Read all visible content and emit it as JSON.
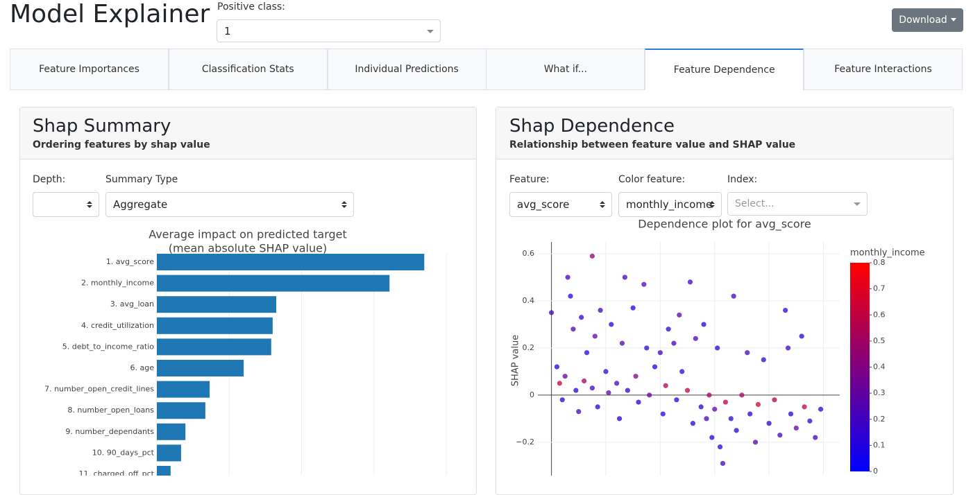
{
  "header": {
    "title": "Model Explainer",
    "positive_class_label": "Positive class:",
    "positive_class_value": "1",
    "download": "Download"
  },
  "tabs": [
    "Feature Importances",
    "Classification Stats",
    "Individual Predictions",
    "What if...",
    "Feature Dependence",
    "Feature Interactions"
  ],
  "active_tab": 4,
  "shap_summary": {
    "title": "Shap Summary",
    "subtitle": "Ordering features by shap value",
    "depth_label": "Depth:",
    "summary_type_label": "Summary Type",
    "summary_type_value": "Aggregate",
    "chart_data": {
      "type": "bar",
      "orientation": "horizontal",
      "title": "Average impact on predicted target",
      "subtitle": "(mean absolute SHAP value)",
      "categories": [
        "1. avg_score",
        "2. monthly_income",
        "3. avg_loan",
        "4. credit_utilization",
        "5. debt_to_income_ratio",
        "6. age",
        "7. number_open_credit_lines",
        "8. number_open_loans",
        "9. number_dependants",
        "10. 90_days_pct",
        "11. charged_off_pct"
      ],
      "values": [
        0.0739,
        0.0643,
        0.033,
        0.032,
        0.0316,
        0.024,
        0.0146,
        0.0134,
        0.0079,
        0.0067,
        0.0038
      ],
      "color": "#1f77b4",
      "xlim": [
        0,
        0.084
      ],
      "xticks": [
        0,
        0.02,
        0.04,
        0.06,
        0.08
      ],
      "grid": true
    }
  },
  "shap_dependence": {
    "title": "Shap Dependence",
    "subtitle": "Relationship between feature value and SHAP value",
    "feature_label": "Feature:",
    "feature_value": "avg_score",
    "color_feature_label": "Color feature:",
    "color_feature_value": "monthly_income",
    "index_label": "Index:",
    "index_placeholder": "Select...",
    "chart_data": {
      "type": "scatter",
      "title": "Dependence plot for avg_score",
      "ylabel": "SHAP value",
      "x": [
        0,
        2,
        3,
        4,
        5,
        6,
        7,
        8,
        9,
        10,
        11,
        12,
        13,
        15,
        15,
        16,
        17,
        18,
        20,
        21,
        22,
        24,
        25,
        26,
        27,
        28,
        30,
        31,
        32,
        34,
        35,
        36,
        38,
        40,
        41,
        42,
        43,
        45,
        46,
        47,
        48,
        50,
        51,
        52,
        53,
        55,
        56,
        57,
        58,
        59,
        60,
        61,
        62,
        63,
        64,
        66,
        67,
        68,
        70,
        72,
        73,
        75,
        76,
        78,
        80,
        82,
        84,
        86,
        87,
        88,
        90,
        92,
        93,
        95,
        97,
        99
      ],
      "values": [
        0.35,
        0.12,
        0.05,
        -0.02,
        0.08,
        0.5,
        0.42,
        0.28,
        0.02,
        -0.07,
        0.33,
        0.06,
        0.18,
        0.59,
        0.03,
        0.25,
        -0.05,
        0.36,
        0.1,
        0.01,
        0.3,
        0.05,
        -0.1,
        0.22,
        0.5,
        0.02,
        0.37,
        0.08,
        -0.03,
        0.47,
        0.2,
        0,
        0.12,
        0.18,
        -0.08,
        0.04,
        0.28,
        0.22,
        -0.02,
        0.34,
        0.1,
        0.02,
        0.48,
        -0.12,
        0.24,
        -0.05,
        0.3,
        -0.1,
        0,
        -0.18,
        -0.06,
        0.2,
        -0.22,
        -0.29,
        -0.03,
        -0.1,
        0.42,
        -0.15,
        0,
        0.18,
        -0.08,
        -0.2,
        -0.04,
        0.15,
        -0.12,
        -0.02,
        -0.17,
        0.36,
        0.2,
        -0.08,
        -0.14,
        0.25,
        -0.05,
        -0.11,
        -0.18,
        -0.06
      ],
      "color_values": [
        0.2,
        0.1,
        0.6,
        0.15,
        0.3,
        0.2,
        0.1,
        0.25,
        0.1,
        0.2,
        0.15,
        0.5,
        0.1,
        0.45,
        0.2,
        0.3,
        0.1,
        0.2,
        0.15,
        0.3,
        0.1,
        0.2,
        0.1,
        0.25,
        0.2,
        0.15,
        0.1,
        0.4,
        0.1,
        0.25,
        0.15,
        0.3,
        0.1,
        0.2,
        0.1,
        0.55,
        0.15,
        0.2,
        0.1,
        0.3,
        0.15,
        0.6,
        0.2,
        0.1,
        0.25,
        0.15,
        0.1,
        0.2,
        0.5,
        0.1,
        0.3,
        0.15,
        0.1,
        0.2,
        0.6,
        0.15,
        0.2,
        0.1,
        0.5,
        0.2,
        0.1,
        0.25,
        0.65,
        0.15,
        0.1,
        0.55,
        0.2,
        0.15,
        0.2,
        0.1,
        0.3,
        0.1,
        0.6,
        0.15,
        0.2,
        0.1
      ],
      "colorscale": [
        "#0000ff",
        "#ff0000"
      ],
      "colorbar": {
        "title": "monthly_income",
        "lim": [
          0,
          0.8
        ],
        "ticks": [
          0,
          0.1,
          0.2,
          0.3,
          0.4,
          0.5,
          0.6,
          0.7,
          0.8
        ]
      },
      "xlim": [
        -5,
        106
      ],
      "xticks": [
        0,
        20,
        40,
        60,
        80,
        100
      ],
      "ylim": [
        -0.38,
        0.65
      ],
      "yticks": [
        {
          "value": -0.2,
          "label": "−0.2"
        },
        0,
        0.2,
        0.4,
        0.6
      ],
      "grid": true
    }
  }
}
